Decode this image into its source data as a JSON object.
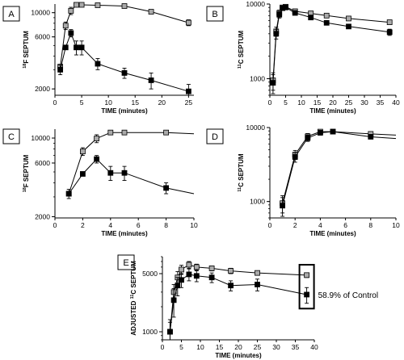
{
  "chart_data": [
    {
      "panel_label": "A",
      "type": "line",
      "xlabel": "TIME (minutes)",
      "ylabel": "¹⁸F SEPTUM",
      "ylabel_parts": {
        "sup": "18",
        "rest": "F SEPTUM"
      },
      "y_scale": "log",
      "xlim": [
        0,
        26
      ],
      "ylim": [
        1750,
        12000
      ],
      "x_ticks": [
        0,
        5,
        10,
        15,
        20,
        25
      ],
      "y_ticks": [
        2000,
        6000,
        10000
      ],
      "series": [
        {
          "color": "#aaaaaa",
          "points": [
            [
              1,
              3200,
              0
            ],
            [
              2,
              7600,
              600
            ],
            [
              3,
              10400,
              800
            ],
            [
              4,
              11800,
              0
            ],
            [
              5,
              11800,
              0
            ],
            [
              8,
              11700,
              0
            ],
            [
              13,
              11500,
              0
            ],
            [
              18,
              10200,
              0
            ],
            [
              25,
              8100,
              500
            ]
          ]
        },
        {
          "color": "#000000",
          "points": [
            [
              1,
              3000,
              300
            ],
            [
              2,
              4800,
              0
            ],
            [
              3,
              6500,
              500
            ],
            [
              4,
              4800,
              700
            ],
            [
              5,
              4800,
              700
            ],
            [
              8,
              3400,
              400
            ],
            [
              13,
              2800,
              300
            ],
            [
              18,
              2400,
              400
            ],
            [
              25,
              1900,
              300
            ]
          ]
        }
      ]
    },
    {
      "panel_label": "B",
      "type": "line",
      "xlabel": "TIME (minutes)",
      "ylabel": "¹¹C SEPTUM",
      "ylabel_parts": {
        "sup": "11",
        "rest": "C SEPTUM"
      },
      "y_scale": "log",
      "xlim": [
        0,
        40
      ],
      "ylim": [
        600,
        10000
      ],
      "x_ticks": [
        0,
        5,
        10,
        15,
        20,
        25,
        30,
        35,
        40
      ],
      "y_ticks": [
        1000,
        10000
      ],
      "series": [
        {
          "color": "#aaaaaa",
          "points": [
            [
              1,
              950,
              250
            ],
            [
              2,
              4300,
              600
            ],
            [
              3,
              7600,
              700
            ],
            [
              4,
              9000,
              600
            ],
            [
              5,
              9200,
              0
            ],
            [
              8,
              8000,
              0
            ],
            [
              13,
              7500,
              0
            ],
            [
              18,
              7000,
              0
            ],
            [
              25,
              6400,
              0
            ],
            [
              38,
              5700,
              0
            ]
          ]
        },
        {
          "color": "#000000",
          "points": [
            [
              1,
              880,
              250
            ],
            [
              2,
              4000,
              600
            ],
            [
              3,
              7200,
              700
            ],
            [
              4,
              8800,
              600
            ],
            [
              5,
              9000,
              0
            ],
            [
              8,
              7600,
              0
            ],
            [
              13,
              6600,
              0
            ],
            [
              18,
              5600,
              0
            ],
            [
              25,
              5000,
              0
            ],
            [
              38,
              4200,
              400
            ]
          ]
        }
      ]
    },
    {
      "panel_label": "C",
      "type": "line",
      "xlabel": "TIME (minutes)",
      "ylabel": "¹⁸F SEPTUM",
      "ylabel_parts": {
        "sup": "18",
        "rest": "F SEPTUM"
      },
      "y_scale": "log",
      "xlim": [
        0,
        10
      ],
      "ylim": [
        1950,
        12000
      ],
      "x_ticks": [
        0,
        2,
        4,
        6,
        8,
        10
      ],
      "y_ticks": [
        2000,
        6000,
        10000
      ],
      "series": [
        {
          "color": "#aaaaaa",
          "points": [
            [
              1,
              3200,
              0
            ],
            [
              2,
              7600,
              600
            ],
            [
              3,
              9900,
              800
            ],
            [
              4,
              11200,
              0
            ],
            [
              5,
              11200,
              0
            ],
            [
              8,
              11200,
              0
            ],
            [
              10,
              10900,
              null
            ]
          ]
        },
        {
          "color": "#000000",
          "points": [
            [
              1,
              3200,
              300
            ],
            [
              2,
              4800,
              0
            ],
            [
              3,
              6500,
              500
            ],
            [
              4,
              4900,
              700
            ],
            [
              5,
              4900,
              700
            ],
            [
              8,
              3600,
              400
            ],
            [
              10,
              3200,
              null
            ]
          ]
        }
      ]
    },
    {
      "panel_label": "D",
      "type": "line",
      "xlabel": "TIME (minutes)",
      "ylabel": "¹¹C SEPTUM",
      "ylabel_parts": {
        "sup": "11",
        "rest": "C SEPTUM"
      },
      "y_scale": "log",
      "xlim": [
        0,
        10
      ],
      "ylim": [
        600,
        10000
      ],
      "x_ticks": [
        0,
        2,
        4,
        6,
        8,
        10
      ],
      "y_ticks": [
        1000,
        10000
      ],
      "series": [
        {
          "color": "#aaaaaa",
          "points": [
            [
              1,
              950,
              250
            ],
            [
              2,
              4300,
              600
            ],
            [
              3,
              7600,
              700
            ],
            [
              4,
              8800,
              600
            ],
            [
              5,
              8800,
              0
            ],
            [
              8,
              8200,
              0
            ],
            [
              10,
              7900,
              null
            ]
          ]
        },
        {
          "color": "#000000",
          "points": [
            [
              1,
              880,
              250
            ],
            [
              2,
              4000,
              600
            ],
            [
              3,
              7200,
              700
            ],
            [
              4,
              8500,
              600
            ],
            [
              5,
              8800,
              0
            ],
            [
              8,
              7500,
              0
            ],
            [
              10,
              7100,
              null
            ]
          ]
        }
      ]
    },
    {
      "panel_label": "E",
      "type": "line",
      "xlabel": "TIME (minutes)",
      "ylabel": "ADJUSTED ¹¹C SEPTUM",
      "ylabel_parts": {
        "pre": "ADJUSTED ",
        "sup": "11",
        "rest": "C SEPTUM"
      },
      "y_scale": "log",
      "xlim": [
        0,
        40
      ],
      "ylim": [
        800,
        8000
      ],
      "x_ticks": [
        0,
        5,
        10,
        15,
        20,
        25,
        30,
        35,
        40
      ],
      "y_ticks": [
        1000,
        5000
      ],
      "annotation": "58.9% of Control",
      "series": [
        {
          "color": "#aaaaaa",
          "points": [
            [
              2,
              1000,
              300
            ],
            [
              3,
              3000,
              700
            ],
            [
              4,
              4500,
              800
            ],
            [
              5,
              5600,
              700
            ],
            [
              7,
              6400,
              600
            ],
            [
              9,
              6000,
              500
            ],
            [
              13,
              5800,
              400
            ],
            [
              18,
              5400,
              400
            ],
            [
              25,
              5100,
              300
            ],
            [
              38,
              4800,
              300
            ]
          ]
        },
        {
          "color": "#000000",
          "points": [
            [
              2,
              1000,
              400
            ],
            [
              3,
              2400,
              900
            ],
            [
              4,
              3600,
              900
            ],
            [
              5,
              4200,
              800
            ],
            [
              7,
              4900,
              800
            ],
            [
              9,
              4700,
              700
            ],
            [
              13,
              4500,
              600
            ],
            [
              18,
              3600,
              500
            ],
            [
              25,
              3700,
              600
            ],
            [
              38,
              2800,
              600
            ]
          ]
        }
      ]
    }
  ]
}
